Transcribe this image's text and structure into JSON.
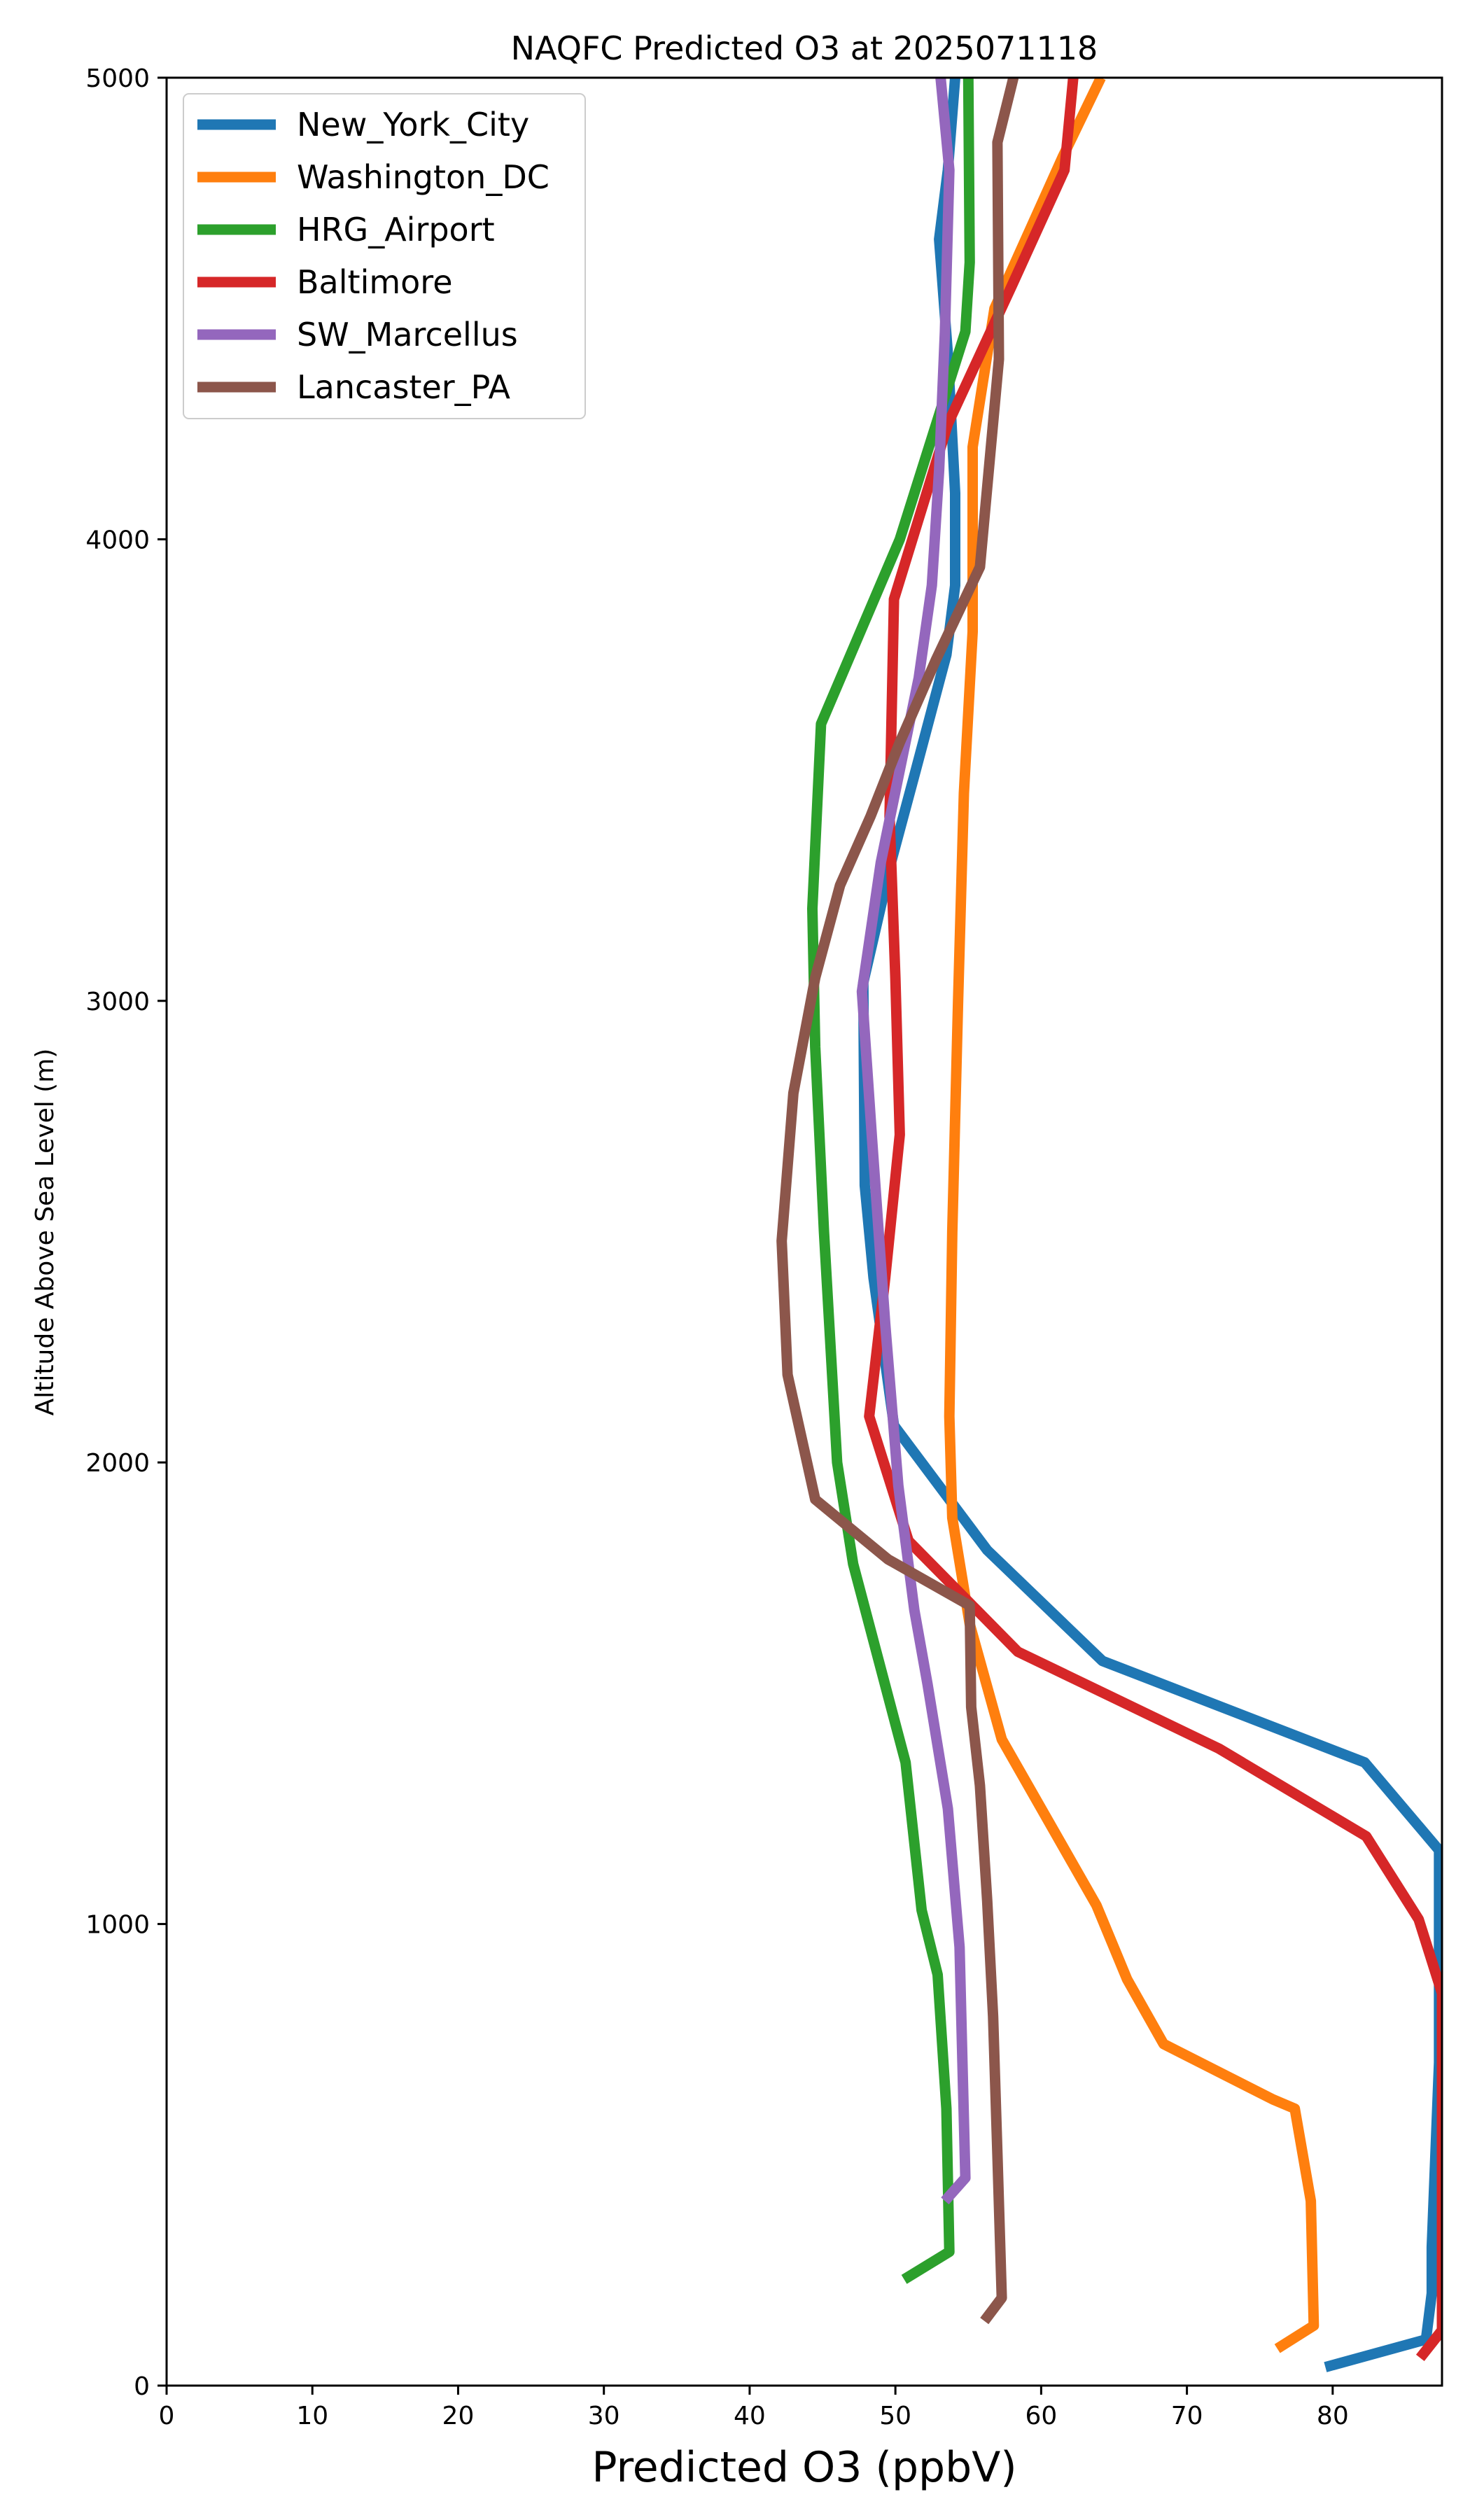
{
  "chart_data": {
    "type": "line",
    "title": "NAQFC Predicted O3 at 2025071118",
    "xlabel": "Predicted O3 (ppbV)",
    "ylabel": "Altitude Above Sea Level (m)",
    "xlim": [
      0,
      87.5
    ],
    "ylim": [
      0,
      5000
    ],
    "xticks": [
      0,
      10,
      20,
      30,
      40,
      50,
      60,
      70,
      80
    ],
    "yticks": [
      0,
      1000,
      2000,
      3000,
      4000,
      5000
    ],
    "xtick_labels": [
      "0",
      "10",
      "20",
      "30",
      "40",
      "50",
      "60",
      "70",
      "80"
    ],
    "ytick_labels": [
      "0",
      "1000",
      "2000",
      "3000",
      "4000",
      "5000"
    ],
    "legend_position": "upper-left",
    "grid": false,
    "series": [
      {
        "name": "New_York_City",
        "color": "#1f77b4",
        "points": [
          [
            79.5,
            40
          ],
          [
            86.4,
            100
          ],
          [
            86.8,
            200
          ],
          [
            86.8,
            300
          ],
          [
            87.3,
            700
          ],
          [
            87.3,
            1160
          ],
          [
            82.2,
            1350
          ],
          [
            64.2,
            1570
          ],
          [
            56.3,
            1810
          ],
          [
            49.9,
            2080
          ],
          [
            48.5,
            2400
          ],
          [
            47.9,
            2600
          ],
          [
            47.8,
            3040
          ],
          [
            49.7,
            3300
          ],
          [
            51.4,
            3500
          ],
          [
            53.5,
            3750
          ],
          [
            54.1,
            3900
          ],
          [
            54.1,
            4100
          ],
          [
            53.6,
            4400
          ],
          [
            53.0,
            4650
          ],
          [
            53.6,
            4800
          ],
          [
            54.1,
            5000
          ]
        ]
      },
      {
        "name": "Washington_DC",
        "color": "#ff7f0e",
        "points": [
          [
            76.2,
            80
          ],
          [
            78.7,
            130
          ],
          [
            78.5,
            400
          ],
          [
            77.4,
            600
          ],
          [
            75.9,
            620
          ],
          [
            68.4,
            740
          ],
          [
            65.9,
            880
          ],
          [
            63.8,
            1040
          ],
          [
            57.3,
            1400
          ],
          [
            55.1,
            1650
          ],
          [
            53.9,
            1880
          ],
          [
            53.7,
            2100
          ],
          [
            53.9,
            2500
          ],
          [
            54.3,
            3000
          ],
          [
            54.7,
            3450
          ],
          [
            55.3,
            3800
          ],
          [
            55.3,
            4200
          ],
          [
            56.8,
            4500
          ],
          [
            61.5,
            4830
          ],
          [
            64.1,
            5000
          ]
        ]
      },
      {
        "name": "HRG_Airport",
        "color": "#2ca02c",
        "points": [
          [
            50.6,
            230
          ],
          [
            53.7,
            290
          ],
          [
            53.5,
            600
          ],
          [
            52.9,
            890
          ],
          [
            51.8,
            1030
          ],
          [
            50.7,
            1350
          ],
          [
            47.1,
            1780
          ],
          [
            46.0,
            2000
          ],
          [
            45.1,
            2500
          ],
          [
            44.5,
            2900
          ],
          [
            44.3,
            3200
          ],
          [
            44.9,
            3600
          ],
          [
            50.3,
            4000
          ],
          [
            54.8,
            4450
          ],
          [
            55.1,
            4600
          ],
          [
            55.0,
            5000
          ]
        ]
      },
      {
        "name": "Baltimore",
        "color": "#d62728",
        "points": [
          [
            86.0,
            60
          ],
          [
            87.5,
            120
          ],
          [
            87.5,
            600
          ],
          [
            87.5,
            850
          ],
          [
            85.9,
            1010
          ],
          [
            82.3,
            1190
          ],
          [
            72.2,
            1380
          ],
          [
            58.4,
            1590
          ],
          [
            50.9,
            1830
          ],
          [
            48.2,
            2100
          ],
          [
            49.3,
            2400
          ],
          [
            50.3,
            2710
          ],
          [
            50.0,
            3050
          ],
          [
            49.6,
            3400
          ],
          [
            49.9,
            3870
          ],
          [
            53.6,
            4250
          ],
          [
            58.0,
            4550
          ],
          [
            61.6,
            4800
          ],
          [
            62.2,
            5000
          ]
        ]
      },
      {
        "name": "SW_Marcellus",
        "color": "#9467bd",
        "points": [
          [
            53.4,
            400
          ],
          [
            54.8,
            450
          ],
          [
            54.6,
            700
          ],
          [
            54.4,
            950
          ],
          [
            53.6,
            1250
          ],
          [
            52.2,
            1520
          ],
          [
            51.3,
            1680
          ],
          [
            50.2,
            1950
          ],
          [
            49.3,
            2300
          ],
          [
            48.4,
            2700
          ],
          [
            47.7,
            3020
          ],
          [
            49.0,
            3300
          ],
          [
            51.6,
            3700
          ],
          [
            52.5,
            3900
          ],
          [
            53.0,
            4150
          ],
          [
            53.4,
            4450
          ],
          [
            53.7,
            4800
          ],
          [
            53.1,
            5000
          ]
        ]
      },
      {
        "name": "Lancaster_PA",
        "color": "#8c564b",
        "points": [
          [
            56.1,
            140
          ],
          [
            57.3,
            190
          ],
          [
            57.0,
            500
          ],
          [
            56.7,
            800
          ],
          [
            56.3,
            1050
          ],
          [
            55.8,
            1300
          ],
          [
            55.2,
            1470
          ],
          [
            55.1,
            1690
          ],
          [
            49.5,
            1790
          ],
          [
            44.5,
            1920
          ],
          [
            42.6,
            2190
          ],
          [
            42.2,
            2480
          ],
          [
            43.0,
            2800
          ],
          [
            44.5,
            3050
          ],
          [
            46.2,
            3250
          ],
          [
            48.3,
            3400
          ],
          [
            50.3,
            3560
          ],
          [
            52.8,
            3740
          ],
          [
            55.8,
            3940
          ],
          [
            57.1,
            4390
          ],
          [
            57.0,
            4860
          ],
          [
            58.1,
            5000
          ]
        ]
      }
    ]
  }
}
